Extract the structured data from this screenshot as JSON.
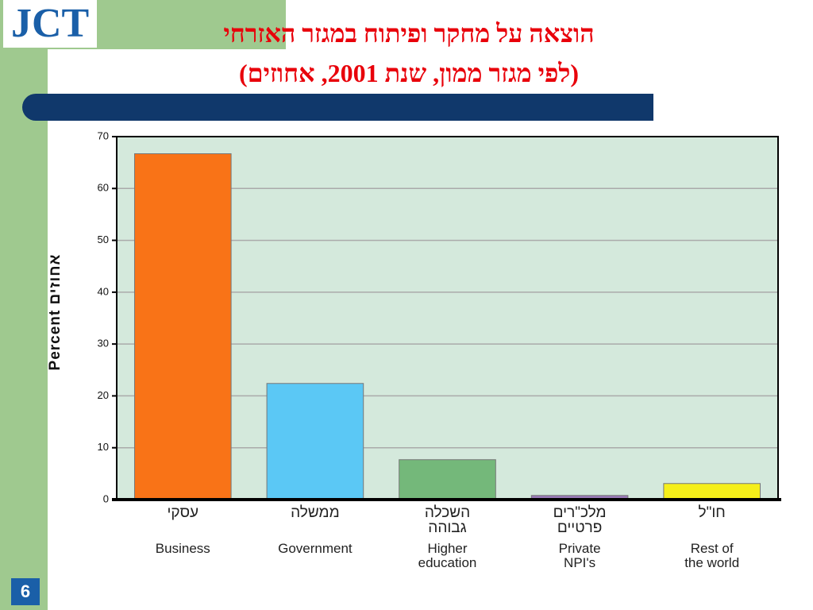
{
  "logo": "JCT",
  "slide_number": "6",
  "chart_data": {
    "type": "bar",
    "title": "הוצאה על מחקר ופיתוח במגזר האזרחי",
    "subtitle": "(לפי מגזר ממון, שנת 2001, אחוזים)",
    "y_label": "Percent אחוזים",
    "categories": [
      "Business",
      "Government",
      "Higher\neducation",
      "Private\nNPI's",
      "Rest of\nthe world"
    ],
    "categories_he": [
      "עסקי",
      "ממשלה",
      "השכלה\nגבוהה",
      "מלכ\"רים\nפרטיים",
      "חו\"ל"
    ],
    "values": [
      66.7,
      22.4,
      7.7,
      0.8,
      3.1
    ],
    "colors": [
      "#f97317",
      "#5bc8f5",
      "#74b87a",
      "#9a7ab8",
      "#f5ef1a"
    ],
    "ylim": [
      0,
      70
    ],
    "yticks": [
      0,
      10,
      20,
      30,
      40,
      50,
      60,
      70
    ],
    "grid": true
  }
}
